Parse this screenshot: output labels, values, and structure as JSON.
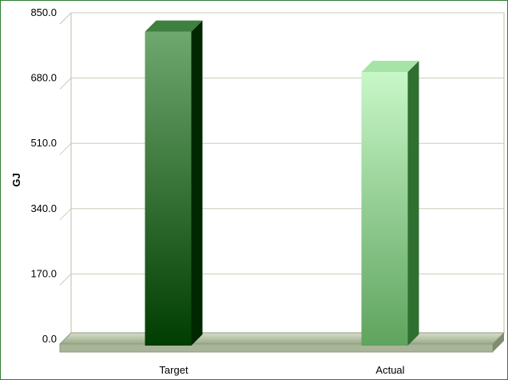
{
  "chart_data": {
    "type": "bar",
    "title": "",
    "xlabel": "",
    "ylabel": "GJ",
    "ylim": [
      0,
      850
    ],
    "yticks": [
      "850.0",
      "680.0",
      "510.0",
      "340.0",
      "170.0",
      "0.0"
    ],
    "categories": [
      "Target",
      "Actual"
    ],
    "values": [
      830,
      725
    ],
    "grid": true,
    "legend": "none",
    "colors": {
      "Target": {
        "front_top": "#6fa86f",
        "front_bottom": "#003d00",
        "side": "#002800",
        "top": "#3f7f3f"
      },
      "Actual": {
        "front_top": "#c8f7c8",
        "front_bottom": "#5ea35e",
        "side": "#2f6f2f",
        "top": "#a6e3a6"
      },
      "floor": "#b9c6a8",
      "gridline": "#c8ceb8"
    }
  }
}
